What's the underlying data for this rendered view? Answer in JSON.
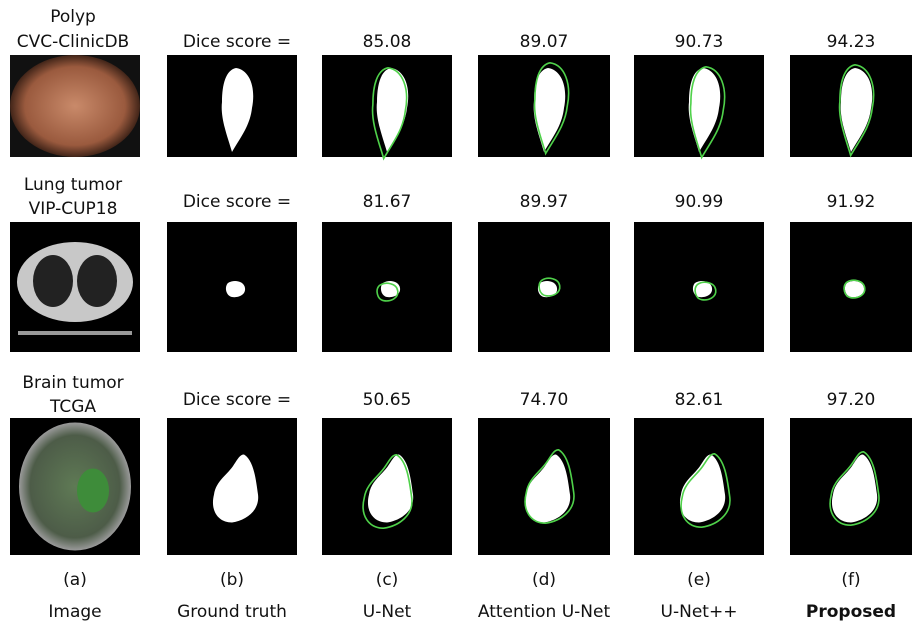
{
  "rows": [
    {
      "dataset": [
        "Polyp",
        "CVC-ClinicDB"
      ],
      "score_label": "Dice score =",
      "scores": [
        "85.08",
        "89.07",
        "90.73",
        "94.23"
      ]
    },
    {
      "dataset": [
        "Lung tumor",
        "VIP-CUP18"
      ],
      "score_label": "Dice score =",
      "scores": [
        "81.67",
        "89.97",
        "90.99",
        "91.92"
      ]
    },
    {
      "dataset": [
        "Brain tumor",
        "TCGA"
      ],
      "score_label": "Dice score =",
      "scores": [
        "50.65",
        "74.70",
        "82.61",
        "97.20"
      ]
    }
  ],
  "columns": [
    {
      "letter": "(a)",
      "name": "Image"
    },
    {
      "letter": "(b)",
      "name": "Ground truth"
    },
    {
      "letter": "(c)",
      "name": "U-Net"
    },
    {
      "letter": "(d)",
      "name": "Attention U-Net"
    },
    {
      "letter": "(e)",
      "name": "U-Net++"
    },
    {
      "letter": "(f)",
      "name": "Proposed"
    }
  ]
}
